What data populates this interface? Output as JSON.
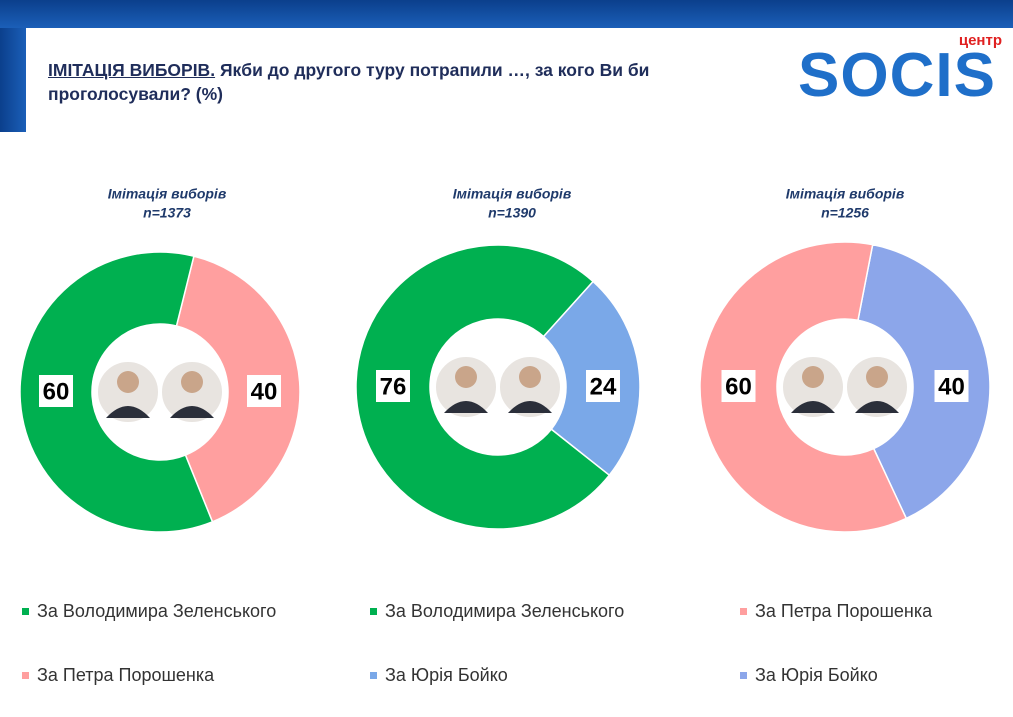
{
  "header": {
    "title_lead": "ІМІТАЦІЯ ВИБОРІВ.",
    "title_rest": "Якби до другого туру потрапили …, за кого Ви би проголосували? (%)",
    "logo": "SOCIS",
    "logo_sub": "центр"
  },
  "chart_data": [
    {
      "type": "pie",
      "donut": true,
      "title": "Імітація виборів",
      "subtitle": "n=1373",
      "categories": [
        "За Володимира Зеленського",
        "За Петра Порошенка"
      ],
      "values": [
        60,
        40
      ],
      "colors": [
        "#00b050",
        "#ff9f9f"
      ]
    },
    {
      "type": "pie",
      "donut": true,
      "title": "Імітація виборів",
      "subtitle": "n=1390",
      "categories": [
        "За Володимира Зеленського",
        "За Юрія Бойко"
      ],
      "values": [
        76,
        24
      ],
      "colors": [
        "#00b050",
        "#7aa8e8"
      ]
    },
    {
      "type": "pie",
      "donut": true,
      "title": "Імітація виборів",
      "subtitle": "n=1256",
      "categories": [
        "За Петра Порошенка",
        "За Юрія Бойко"
      ],
      "values": [
        60,
        40
      ],
      "colors": [
        "#ff9f9f",
        "#8ca6ea"
      ]
    }
  ]
}
